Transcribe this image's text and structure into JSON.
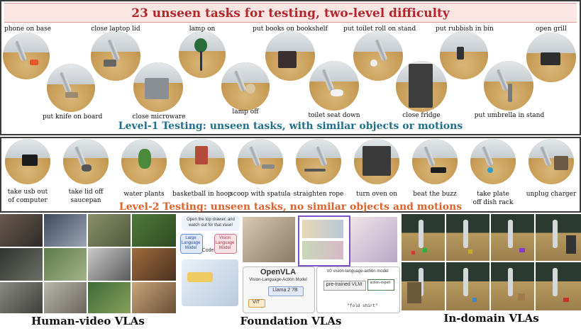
{
  "banner": {
    "title": "23 unseen tasks for testing, two-level difficulty"
  },
  "level1": {
    "heading": "Level-1 Testing: unseen tasks, with similar objects or motions",
    "tasks": [
      "phone on base",
      "put knife on board",
      "close laptop lid",
      "close microware",
      "lamp on",
      "lamp off",
      "put books on bookshelf",
      "toilet seat down",
      "put toilet roll on stand",
      "close fridge",
      "put rubbish in bin",
      "put umbrella in stand",
      "open grill"
    ]
  },
  "level2": {
    "heading": "Level-2 Testing: unseen tasks, no similar objects and motions",
    "tasks": [
      [
        "take usb out",
        "of computer"
      ],
      [
        "take lid off",
        "saucepan"
      ],
      [
        "water plants"
      ],
      [
        "basketball in hoop"
      ],
      [
        "scoop with spatula"
      ],
      [
        "straighten rope"
      ],
      [
        "turn oven on"
      ],
      [
        "beat the buzz"
      ],
      [
        "take plate",
        "off dish rack"
      ],
      [
        "unplug charger"
      ]
    ]
  },
  "panels": {
    "human_video": {
      "label": "Human-video VLAs"
    },
    "foundation": {
      "label": "Foundation VLAs",
      "prompt": "Open the top drawer, and watch out for that vase!",
      "llm": "Large Language Model",
      "vlm": "Vision Language Model",
      "code": "Code",
      "openvla_title": "OpenVLA",
      "openvla_sub": "Vision-Language-Action Model",
      "llama": "Llama 2 7B",
      "vit": "ViT",
      "pi_title": "π0 vision-language-action model",
      "pretrained": "pre-trained VLM",
      "action_expert": "action expert",
      "fold": "\"fold shirt\""
    },
    "in_domain": {
      "label": "In-domain VLAs"
    }
  },
  "colors": {
    "title_red": "#b3262c",
    "level1_blue": "#1f6f8b",
    "level2_orange": "#e0622c"
  }
}
